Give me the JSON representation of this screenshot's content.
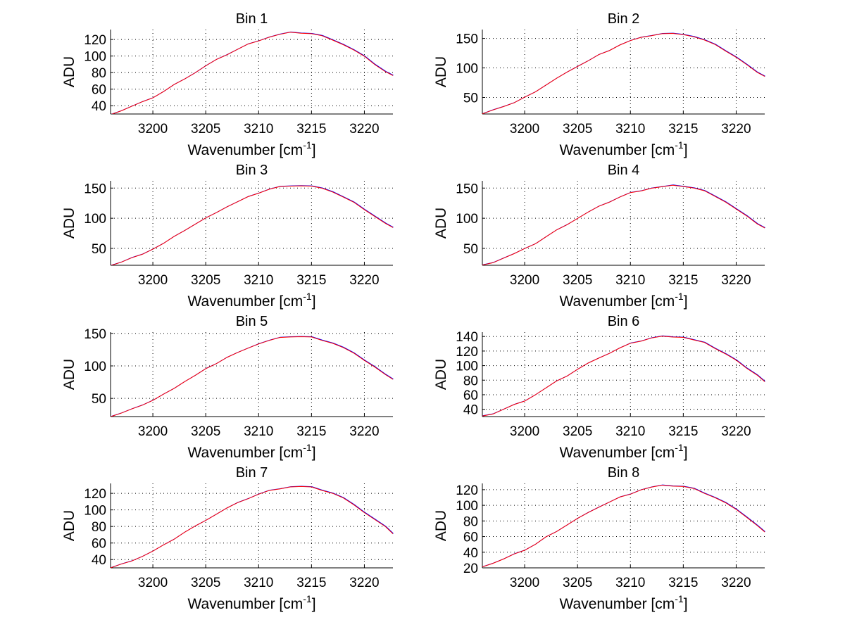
{
  "chart_data": {
    "type": "line",
    "layout": "4x2 subplots",
    "xlabel_parts": [
      "Wavenumber [cm",
      "-1",
      "]"
    ],
    "ylabel": "ADU",
    "xlim": [
      3196,
      3222.7
    ],
    "xticks": [
      3200,
      3205,
      3210,
      3215,
      3220
    ],
    "grid": true,
    "line_colors": [
      "#ff0000",
      "#0000ff"
    ],
    "x": [
      3196,
      3197,
      3198,
      3199,
      3200,
      3201,
      3202,
      3203,
      3204,
      3205,
      3206,
      3207,
      3208,
      3209,
      3210,
      3211,
      3212,
      3213,
      3214,
      3215,
      3216,
      3217,
      3218,
      3219,
      3220,
      3221,
      3222,
      3223
    ],
    "subplots": [
      {
        "title": "Bin 1",
        "ylim": [
          30,
          132
        ],
        "yticks": [
          40,
          60,
          80,
          100,
          120
        ],
        "y": [
          30,
          34,
          39,
          44,
          50,
          57,
          65,
          73,
          80,
          88,
          95,
          102,
          108,
          114,
          119,
          123,
          126,
          128,
          128,
          127,
          124,
          120,
          114,
          107,
          99,
          90,
          81,
          74
        ]
      },
      {
        "title": "Bin 2",
        "ylim": [
          22,
          165
        ],
        "yticks": [
          50,
          100,
          150
        ],
        "y": [
          22,
          28,
          35,
          41,
          50,
          60,
          71,
          82,
          92,
          103,
          112,
          122,
          130,
          139,
          146,
          151,
          155,
          158,
          158,
          157,
          153,
          147,
          139,
          129,
          118,
          105,
          93,
          83
        ]
      },
      {
        "title": "Bin 3",
        "ylim": [
          22,
          162
        ],
        "yticks": [
          50,
          100,
          150
        ],
        "y": [
          22,
          27,
          34,
          41,
          49,
          58,
          69,
          80,
          90,
          100,
          110,
          119,
          127,
          135,
          142,
          148,
          152,
          154,
          154,
          153,
          149,
          144,
          135,
          126,
          115,
          103,
          91,
          81
        ]
      },
      {
        "title": "Bin 4",
        "ylim": [
          22,
          162
        ],
        "yticks": [
          50,
          100,
          150
        ],
        "y": [
          22,
          27,
          34,
          41,
          49,
          58,
          69,
          80,
          90,
          100,
          110,
          119,
          127,
          135,
          142,
          146,
          150,
          152,
          154,
          153,
          150,
          145,
          137,
          127,
          115,
          103,
          91,
          81
        ]
      },
      {
        "title": "Bin 5",
        "ylim": [
          22,
          152
        ],
        "yticks": [
          50,
          100,
          150
        ],
        "y": [
          22,
          27,
          33,
          40,
          47,
          56,
          66,
          76,
          85,
          95,
          104,
          113,
          120,
          128,
          134,
          139,
          143,
          145,
          145,
          144,
          140,
          135,
          128,
          119,
          109,
          98,
          86,
          77
        ]
      },
      {
        "title": "Bin 6",
        "ylim": [
          30,
          146
        ],
        "yticks": [
          40,
          60,
          80,
          100,
          120,
          140
        ],
        "y": [
          30,
          34,
          40,
          46,
          52,
          60,
          69,
          78,
          86,
          95,
          103,
          111,
          117,
          124,
          130,
          134,
          138,
          140,
          140,
          139,
          135,
          131,
          124,
          116,
          107,
          97,
          87,
          74
        ]
      },
      {
        "title": "Bin 7",
        "ylim": [
          30,
          132
        ],
        "yticks": [
          40,
          60,
          80,
          100,
          120
        ],
        "y": [
          30,
          34,
          39,
          44,
          50,
          57,
          65,
          73,
          80,
          88,
          95,
          102,
          108,
          114,
          119,
          123,
          126,
          128,
          128,
          127,
          124,
          120,
          114,
          107,
          97,
          88,
          79,
          68
        ]
      },
      {
        "title": "Bin 8",
        "ylim": [
          20,
          128
        ],
        "yticks": [
          20,
          40,
          60,
          80,
          100,
          120
        ],
        "y": [
          22,
          26,
          31,
          37,
          43,
          50,
          59,
          67,
          75,
          83,
          90,
          98,
          104,
          110,
          115,
          120,
          123,
          125,
          125,
          124,
          121,
          116,
          110,
          103,
          94,
          85,
          74,
          62
        ]
      }
    ]
  }
}
